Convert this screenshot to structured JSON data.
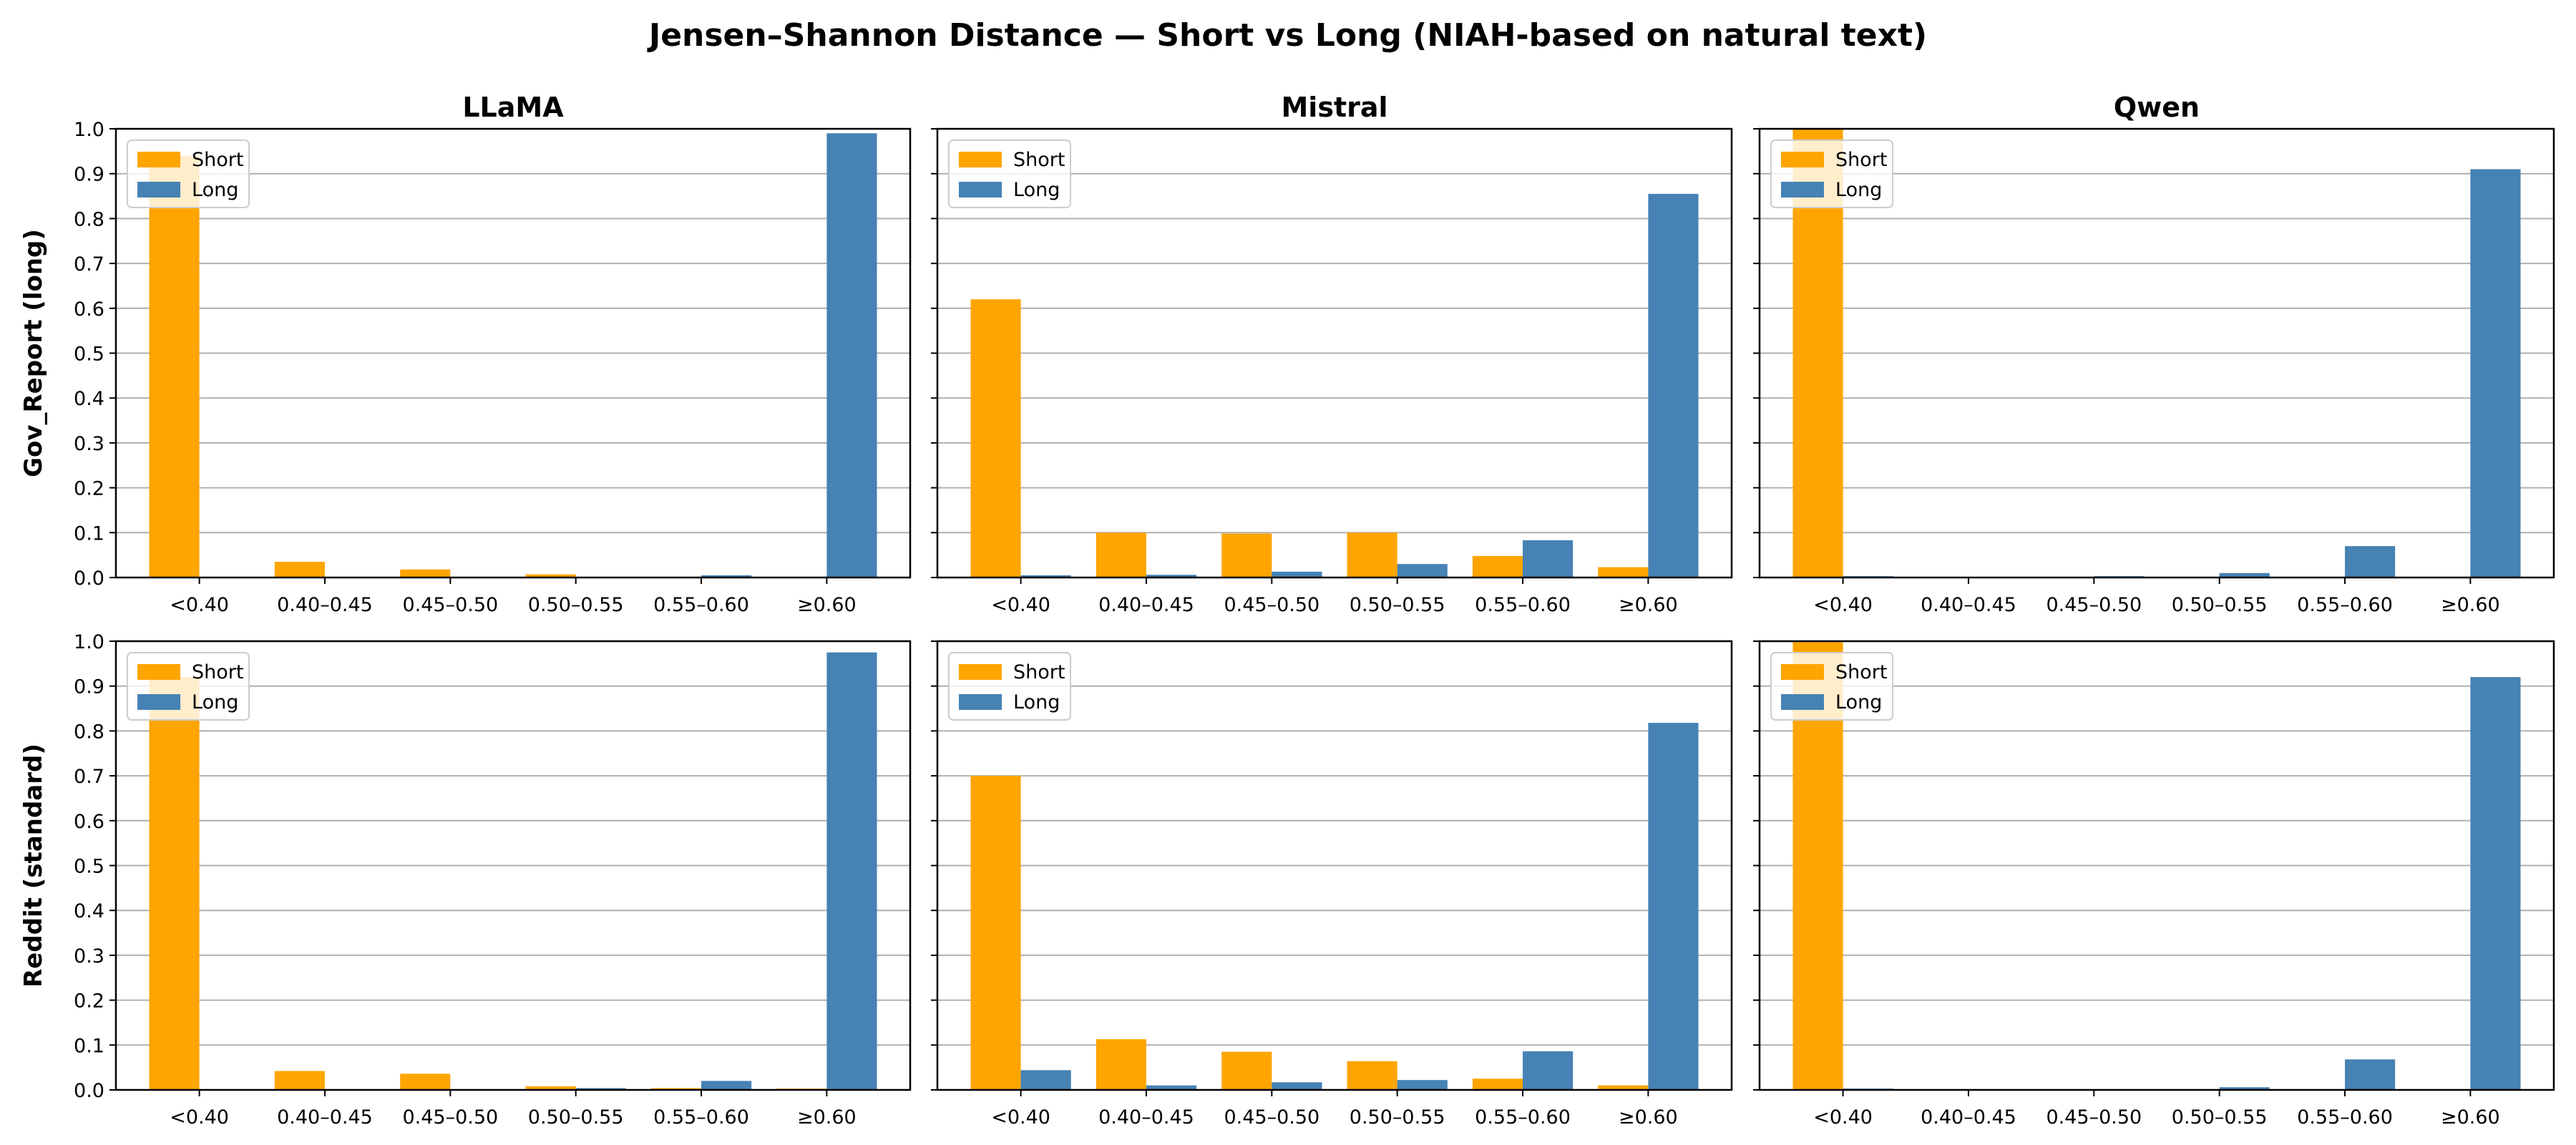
{
  "figure": {
    "title": "Jensen–Shannon Distance — Short vs Long (NIAH-based on natural text)"
  },
  "colors": {
    "Short": "#ffa500",
    "Long": "#4682b4"
  },
  "chart_data": [
    {
      "type": "bar",
      "title": "LLaMA",
      "ylabel": "Gov_Report (long)",
      "legend": "top-left",
      "categories": [
        "<0.40",
        "0.40–0.45",
        "0.45–0.50",
        "0.50–0.55",
        "0.55–0.60",
        "≥0.60"
      ],
      "ylim": [
        0,
        1.0
      ],
      "yticks": [
        "0.0",
        "0.1",
        "0.2",
        "0.3",
        "0.4",
        "0.5",
        "0.6",
        "0.7",
        "0.8",
        "0.9",
        "1.0"
      ],
      "grid": true,
      "series": [
        {
          "name": "Short",
          "values": [
            0.94,
            0.035,
            0.018,
            0.007,
            0.0,
            0.0
          ]
        },
        {
          "name": "Long",
          "values": [
            0.0,
            0.0,
            0.0,
            0.0,
            0.005,
            0.99
          ]
        }
      ]
    },
    {
      "type": "bar",
      "title": "Mistral",
      "ylabel": "",
      "legend": "top-left",
      "categories": [
        "<0.40",
        "0.40–0.45",
        "0.45–0.50",
        "0.50–0.55",
        "0.55–0.60",
        "≥0.60"
      ],
      "ylim": [
        0,
        1.0
      ],
      "yticks": [],
      "grid": true,
      "series": [
        {
          "name": "Short",
          "values": [
            0.62,
            0.1,
            0.098,
            0.1,
            0.048,
            0.023
          ]
        },
        {
          "name": "Long",
          "values": [
            0.005,
            0.006,
            0.013,
            0.03,
            0.083,
            0.855
          ]
        }
      ]
    },
    {
      "type": "bar",
      "title": "Qwen",
      "ylabel": "",
      "legend": "top-left",
      "categories": [
        "<0.40",
        "0.40–0.45",
        "0.45–0.50",
        "0.50–0.55",
        "0.55–0.60",
        "≥0.60"
      ],
      "ylim": [
        0,
        1.0
      ],
      "yticks": [],
      "grid": true,
      "series": [
        {
          "name": "Short",
          "values": [
            1.0,
            0.0,
            0.0,
            0.0,
            0.0,
            0.0
          ]
        },
        {
          "name": "Long",
          "values": [
            0.003,
            0.0,
            0.003,
            0.01,
            0.07,
            0.91
          ]
        }
      ]
    },
    {
      "type": "bar",
      "title": "",
      "ylabel": "Reddit (standard)",
      "legend": "top-left",
      "categories": [
        "<0.40",
        "0.40–0.45",
        "0.45–0.50",
        "0.50–0.55",
        "0.55–0.60",
        "≥0.60"
      ],
      "ylim": [
        0,
        1.0
      ],
      "yticks": [
        "0.0",
        "0.1",
        "0.2",
        "0.3",
        "0.4",
        "0.5",
        "0.6",
        "0.7",
        "0.8",
        "0.9",
        "1.0"
      ],
      "grid": true,
      "series": [
        {
          "name": "Short",
          "values": [
            0.92,
            0.042,
            0.036,
            0.008,
            0.004,
            0.003
          ]
        },
        {
          "name": "Long",
          "values": [
            0.0,
            0.0,
            0.0,
            0.004,
            0.02,
            0.975
          ]
        }
      ]
    },
    {
      "type": "bar",
      "title": "",
      "ylabel": "",
      "legend": "top-left",
      "categories": [
        "<0.40",
        "0.40–0.45",
        "0.45–0.50",
        "0.50–0.55",
        "0.55–0.60",
        "≥0.60"
      ],
      "ylim": [
        0,
        1.0
      ],
      "yticks": [],
      "grid": true,
      "series": [
        {
          "name": "Short",
          "values": [
            0.7,
            0.113,
            0.085,
            0.064,
            0.025,
            0.01
          ]
        },
        {
          "name": "Long",
          "values": [
            0.044,
            0.01,
            0.017,
            0.022,
            0.086,
            0.818
          ]
        }
      ]
    },
    {
      "type": "bar",
      "title": "",
      "ylabel": "",
      "legend": "top-left",
      "categories": [
        "<0.40",
        "0.40–0.45",
        "0.45–0.50",
        "0.50–0.55",
        "0.55–0.60",
        "≥0.60"
      ],
      "ylim": [
        0,
        1.0
      ],
      "yticks": [],
      "grid": true,
      "series": [
        {
          "name": "Short",
          "values": [
            1.0,
            0.0,
            0.0,
            0.0,
            0.0,
            0.0
          ]
        },
        {
          "name": "Long",
          "values": [
            0.003,
            0.0,
            0.0,
            0.006,
            0.068,
            0.92
          ]
        }
      ]
    }
  ]
}
